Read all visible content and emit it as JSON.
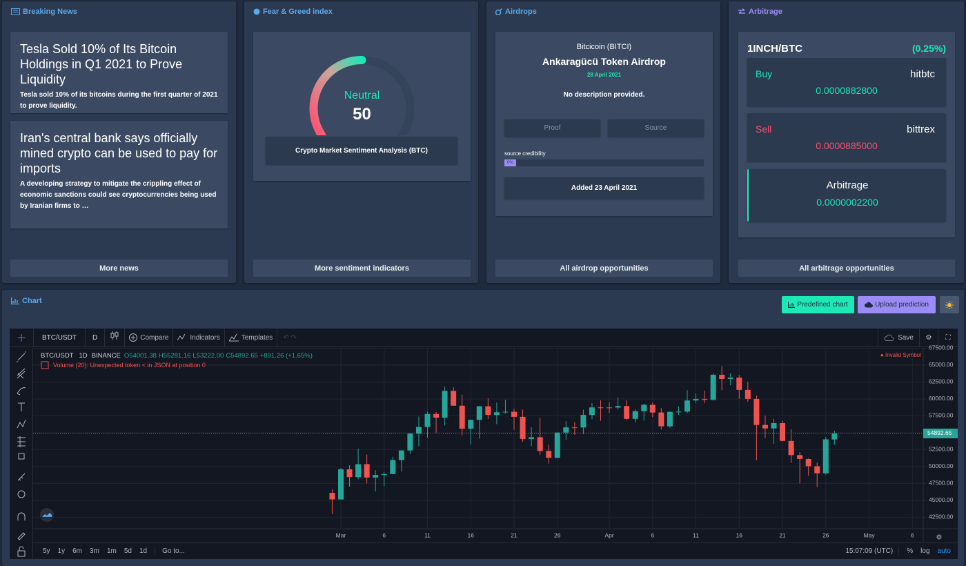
{
  "breaking_news": {
    "title": "Breaking News",
    "articles": [
      {
        "title": "Tesla Sold 10% of Its Bitcoin Holdings in Q1 2021 to Prove Liquidity",
        "summary": "Tesla sold 10% of its bitcoins during the first quarter of 2021 to prove liquidity."
      },
      {
        "title": "Iran's central bank says officially mined crypto can be used to pay for imports",
        "summary": "A developing strategy to mitigate the crippling effect of economic sanctions could see cryptocurrencies being used by Iranian firms to …"
      }
    ],
    "button": "More news"
  },
  "fear_greed": {
    "title": "Fear & Greed index",
    "label": "Neutral",
    "value": 50,
    "range": [
      0,
      100
    ],
    "analysis_prefix": "Crypto Market Sentiment Analysis (",
    "analysis_bold": "BTC",
    "analysis_suffix": ")",
    "button": "More sentiment indicators"
  },
  "airdrops": {
    "title": "Airdrops",
    "coin": "Bitcicoin (BITCI)",
    "name": "Ankaragücü Token Airdrop",
    "date": "28 April 2021",
    "description": "No description provided.",
    "links": [
      "Proof",
      "Source"
    ],
    "credibility_label": "source credibility",
    "credibility": {
      "value": 0,
      "label": "0%"
    },
    "added": "Added 23 April 2021",
    "button": "All airdrop opportunities"
  },
  "arbitrage": {
    "title": "Arbitrage",
    "pair": "1INCH/BTC",
    "spread": "(0.25%)",
    "buy": {
      "label": "Buy",
      "exchange": "hitbtc",
      "price": "0.0000882800"
    },
    "sell": {
      "label": "Sell",
      "exchange": "bittrex",
      "price": "0.0000885000"
    },
    "result": {
      "label": "Arbitrage",
      "value": "0.0000002200"
    },
    "button": "All arbitrage opportunities"
  },
  "chart_section": {
    "title": "Chart",
    "buttons": [
      "Predefined chart",
      "Upload prediction"
    ]
  },
  "toolbar": {
    "symbol": "BTC/USDT",
    "interval": "D",
    "items": [
      "Compare",
      "Indicators",
      "Templates"
    ],
    "save": "Save",
    "ranges": [
      "5y",
      "1y",
      "6m",
      "3m",
      "1m",
      "5d",
      "1d"
    ],
    "goto": "Go to...",
    "time": "15:07:09 (UTC)",
    "options": [
      "%",
      "log",
      "auto"
    ]
  },
  "chart_data": {
    "type": "candlestick",
    "legend": {
      "symbol": "BTC/USDT",
      "interval": "1D",
      "exchange": "BINANCE",
      "open": "O54001.38",
      "high": "H55281.16",
      "low": "L53222.00",
      "close": "C54892.65",
      "change": "+891.26 (+1.65%)",
      "last_price": "54892.65"
    },
    "volume_error": "Volume (20): Unexpected token < in JSON at position 0",
    "invalid": "● Invalid Symbol",
    "up_color": "#26a69a",
    "down_color": "#ef5350",
    "grid": true,
    "ylim": [
      40800,
      67550
    ],
    "yticks": [
      {
        "value": 42500,
        "label": "42500.00"
      },
      {
        "value": 45000,
        "label": "45000.00"
      },
      {
        "value": 47500,
        "label": "47500.00"
      },
      {
        "value": 50000,
        "label": "50000.00"
      },
      {
        "value": 52500,
        "label": "52500.00"
      },
      {
        "value": 55000,
        "label": "55000.00"
      },
      {
        "value": 57500,
        "label": "57500.00"
      },
      {
        "value": 60000,
        "label": "60000.00"
      },
      {
        "value": 62500,
        "label": "62500.00"
      },
      {
        "value": 65000,
        "label": "65000.00"
      },
      {
        "value": 67500,
        "label": "67500.00"
      }
    ],
    "xticks": [
      {
        "value": "Mar 1",
        "label": "Mar"
      },
      {
        "value": "Mar 6",
        "label": "6"
      },
      {
        "value": "Mar 11",
        "label": "11"
      },
      {
        "value": "Mar 16",
        "label": "16"
      },
      {
        "value": "Mar 21",
        "label": "21"
      },
      {
        "value": "Mar 26",
        "label": "26"
      },
      {
        "value": "Apr 1",
        "label": "Apr"
      },
      {
        "value": "Apr 6",
        "label": "6"
      },
      {
        "value": "Apr 11",
        "label": "11"
      },
      {
        "value": "Apr 16",
        "label": "16"
      },
      {
        "value": "Apr 21",
        "label": "21"
      },
      {
        "value": "Apr 26",
        "label": "26"
      },
      {
        "value": "May 1",
        "label": "May"
      },
      {
        "value": "May 6",
        "label": "6"
      }
    ],
    "candles": [
      {
        "x": "Feb 28",
        "open": 46103,
        "high": 46638,
        "low": 43000,
        "close": 45135
      },
      {
        "x": "Mar 1",
        "open": 45134,
        "high": 49790,
        "low": 45115,
        "close": 49587
      },
      {
        "x": "Mar 2",
        "open": 49595,
        "high": 50200,
        "low": 47047,
        "close": 48440
      },
      {
        "x": "Mar 3",
        "open": 48436,
        "high": 52640,
        "low": 48100,
        "close": 50349
      },
      {
        "x": "Mar 4",
        "open": 50349,
        "high": 51773,
        "low": 47500,
        "close": 48374
      },
      {
        "x": "Mar 5",
        "open": 48375,
        "high": 49448,
        "low": 46300,
        "close": 48751
      },
      {
        "x": "Mar 6",
        "open": 48747,
        "high": 49200,
        "low": 47070,
        "close": 48882
      },
      {
        "x": "Mar 7",
        "open": 48882,
        "high": 51450,
        "low": 48882,
        "close": 50971
      },
      {
        "x": "Mar 8",
        "open": 50960,
        "high": 52402,
        "low": 49274,
        "close": 52375
      },
      {
        "x": "Mar 9",
        "open": 52376,
        "high": 54900,
        "low": 51846,
        "close": 54884
      },
      {
        "x": "Mar 10",
        "open": 54874,
        "high": 57387,
        "low": 53005,
        "close": 55851
      },
      {
        "x": "Mar 11",
        "open": 55851,
        "high": 58150,
        "low": 54272,
        "close": 57773
      },
      {
        "x": "Mar 12",
        "open": 57773,
        "high": 58058,
        "low": 55013,
        "close": 57221
      },
      {
        "x": "Mar 13",
        "open": 57222,
        "high": 61844,
        "low": 56078,
        "close": 61188
      },
      {
        "x": "Mar 14",
        "open": 61188,
        "high": 61724,
        "low": 59020,
        "close": 59000
      },
      {
        "x": "Mar 15",
        "open": 59000,
        "high": 60633,
        "low": 54600,
        "close": 55600
      },
      {
        "x": "Mar 16",
        "open": 55600,
        "high": 56938,
        "low": 53271,
        "close": 56900
      },
      {
        "x": "Mar 17",
        "open": 56900,
        "high": 58999,
        "low": 54123,
        "close": 58913
      },
      {
        "x": "Mar 18",
        "open": 58912,
        "high": 60100,
        "low": 57023,
        "close": 57648
      },
      {
        "x": "Mar 19",
        "open": 57641,
        "high": 59468,
        "low": 56270,
        "close": 58030
      },
      {
        "x": "Mar 20",
        "open": 58030,
        "high": 59880,
        "low": 57820,
        "close": 58102
      },
      {
        "x": "Mar 21",
        "open": 58100,
        "high": 58589,
        "low": 55450,
        "close": 57351
      },
      {
        "x": "Mar 22",
        "open": 57351,
        "high": 58430,
        "low": 53650,
        "close": 54083
      },
      {
        "x": "Mar 23",
        "open": 54083,
        "high": 55830,
        "low": 53000,
        "close": 54340
      },
      {
        "x": "Mar 24",
        "open": 54342,
        "high": 57200,
        "low": 51700,
        "close": 52303
      },
      {
        "x": "Mar 25",
        "open": 52303,
        "high": 53236,
        "low": 50427,
        "close": 51293
      },
      {
        "x": "Mar 26",
        "open": 51293,
        "high": 55073,
        "low": 51226,
        "close": 55025
      },
      {
        "x": "Mar 27",
        "open": 55025,
        "high": 56700,
        "low": 53950,
        "close": 55791
      },
      {
        "x": "Mar 28",
        "open": 55791,
        "high": 56559,
        "low": 54701,
        "close": 55777
      },
      {
        "x": "Mar 29",
        "open": 55777,
        "high": 58405,
        "low": 54800,
        "close": 57635
      },
      {
        "x": "Mar 30",
        "open": 57635,
        "high": 59368,
        "low": 57000,
        "close": 58746
      },
      {
        "x": "Mar 31",
        "open": 58746,
        "high": 59800,
        "low": 56769,
        "close": 58740
      },
      {
        "x": "Apr 1",
        "open": 58740,
        "high": 59490,
        "low": 57935,
        "close": 58720
      },
      {
        "x": "Apr 2",
        "open": 58720,
        "high": 60200,
        "low": 58428,
        "close": 58950
      },
      {
        "x": "Apr 3",
        "open": 58950,
        "high": 59791,
        "low": 56880,
        "close": 57051
      },
      {
        "x": "Apr 4",
        "open": 57051,
        "high": 58492,
        "low": 56500,
        "close": 58202
      },
      {
        "x": "Apr 5",
        "open": 58202,
        "high": 59251,
        "low": 56800,
        "close": 59130
      },
      {
        "x": "Apr 6",
        "open": 59130,
        "high": 59474,
        "low": 57333,
        "close": 57991
      },
      {
        "x": "Apr 7",
        "open": 57991,
        "high": 58650,
        "low": 55473,
        "close": 55954
      },
      {
        "x": "Apr 8",
        "open": 55953,
        "high": 58153,
        "low": 55700,
        "close": 58077
      },
      {
        "x": "Apr 9",
        "open": 58077,
        "high": 58894,
        "low": 57654,
        "close": 58130
      },
      {
        "x": "Apr 10",
        "open": 58130,
        "high": 61300,
        "low": 57905,
        "close": 59770
      },
      {
        "x": "Apr 11",
        "open": 59770,
        "high": 60800,
        "low": 59360,
        "close": 60007
      },
      {
        "x": "Apr 12",
        "open": 60007,
        "high": 61200,
        "low": 59369,
        "close": 59860
      },
      {
        "x": "Apr 13",
        "open": 59860,
        "high": 63774,
        "low": 59770,
        "close": 63575
      },
      {
        "x": "Apr 14",
        "open": 63575,
        "high": 64854,
        "low": 61301,
        "close": 62959
      },
      {
        "x": "Apr 15",
        "open": 62959,
        "high": 63800,
        "low": 62020,
        "close": 63159
      },
      {
        "x": "Apr 16",
        "open": 63159,
        "high": 63520,
        "low": 60000,
        "close": 61334
      },
      {
        "x": "Apr 17",
        "open": 61334,
        "high": 62506,
        "low": 59580,
        "close": 60006
      },
      {
        "x": "Apr 18",
        "open": 60006,
        "high": 60499,
        "low": 50931,
        "close": 56150
      },
      {
        "x": "Apr 19",
        "open": 56150,
        "high": 57526,
        "low": 54221,
        "close": 55633
      },
      {
        "x": "Apr 20",
        "open": 55633,
        "high": 57076,
        "low": 53329,
        "close": 56425
      },
      {
        "x": "Apr 21",
        "open": 56425,
        "high": 56757,
        "low": 53695,
        "close": 53787
      },
      {
        "x": "Apr 22",
        "open": 53787,
        "high": 55521,
        "low": 50500,
        "close": 51690
      },
      {
        "x": "Apr 23",
        "open": 51690,
        "high": 52120,
        "low": 47500,
        "close": 51125
      },
      {
        "x": "Apr 24",
        "open": 51110,
        "high": 51200,
        "low": 48657,
        "close": 50047
      },
      {
        "x": "Apr 25",
        "open": 50047,
        "high": 50591,
        "low": 46930,
        "close": 49004
      },
      {
        "x": "Apr 26",
        "open": 49004,
        "high": 54356,
        "low": 48800,
        "close": 54021
      },
      {
        "x": "Apr 27",
        "open": 54001.38,
        "high": 55281.16,
        "low": 53222,
        "close": 54892.65
      }
    ]
  }
}
